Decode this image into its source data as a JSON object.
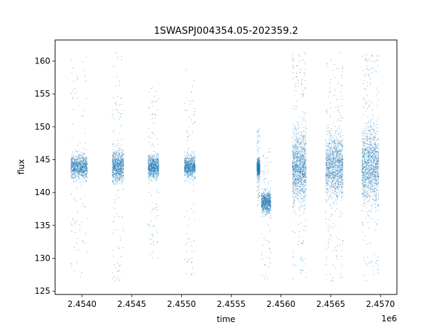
{
  "chart_data": {
    "type": "scatter",
    "title": "1SWASPJ004354.05-202359.2",
    "xlabel": "time",
    "ylabel": "flux",
    "x_offset_label": "1e6",
    "xlim": [
      2453730,
      2457165
    ],
    "ylim": [
      124.5,
      163.2
    ],
    "x_ticks": [
      2454000,
      2454500,
      2455000,
      2455500,
      2456000,
      2456500,
      2457000
    ],
    "x_tick_labels": [
      "2.4540",
      "2.4545",
      "2.4550",
      "2.4555",
      "2.4560",
      "2.4565",
      "2.4570"
    ],
    "y_ticks": [
      125,
      130,
      135,
      140,
      145,
      150,
      155,
      160
    ],
    "y_tick_labels": [
      "125",
      "130",
      "135",
      "140",
      "145",
      "150",
      "155",
      "160"
    ],
    "grid": false,
    "legend": "none",
    "point_color": "#1f77b4",
    "series": [
      {
        "segments": [
          {
            "x_start": 2453885,
            "x_end": 2454050,
            "center": 144.0,
            "core_spread": 1.6,
            "outlier_range": [
              127,
              161
            ]
          },
          {
            "x_start": 2454300,
            "x_end": 2454415,
            "center": 144.0,
            "core_spread": 2.0,
            "outlier_range": [
              126.5,
              161.5
            ]
          },
          {
            "x_start": 2454660,
            "x_end": 2454770,
            "center": 144.0,
            "core_spread": 1.5,
            "outlier_range": [
              130,
              156
            ]
          },
          {
            "x_start": 2455025,
            "x_end": 2455135,
            "center": 144.0,
            "core_spread": 1.4,
            "outlier_range": [
              127,
              159
            ]
          },
          {
            "x_start": 2455755,
            "x_end": 2455785,
            "center": 143.8,
            "core_spread": 1.2,
            "outlier_range": [
              138,
              150
            ]
          },
          {
            "x_start": 2455800,
            "x_end": 2455895,
            "center": 138.5,
            "core_spread": 1.4,
            "outlier_range": [
              126.5,
              147
            ]
          },
          {
            "x_start": 2456110,
            "x_end": 2456250,
            "center": 144.0,
            "core_spread": 4.5,
            "outlier_range": [
              126.5,
              161.5
            ]
          },
          {
            "x_start": 2456445,
            "x_end": 2456620,
            "center": 144.0,
            "core_spread": 4.0,
            "outlier_range": [
              126.5,
              161.5
            ]
          },
          {
            "x_start": 2456810,
            "x_end": 2456980,
            "center": 144.0,
            "core_spread": 4.8,
            "outlier_range": [
              126.5,
              161.5
            ]
          }
        ]
      }
    ]
  }
}
